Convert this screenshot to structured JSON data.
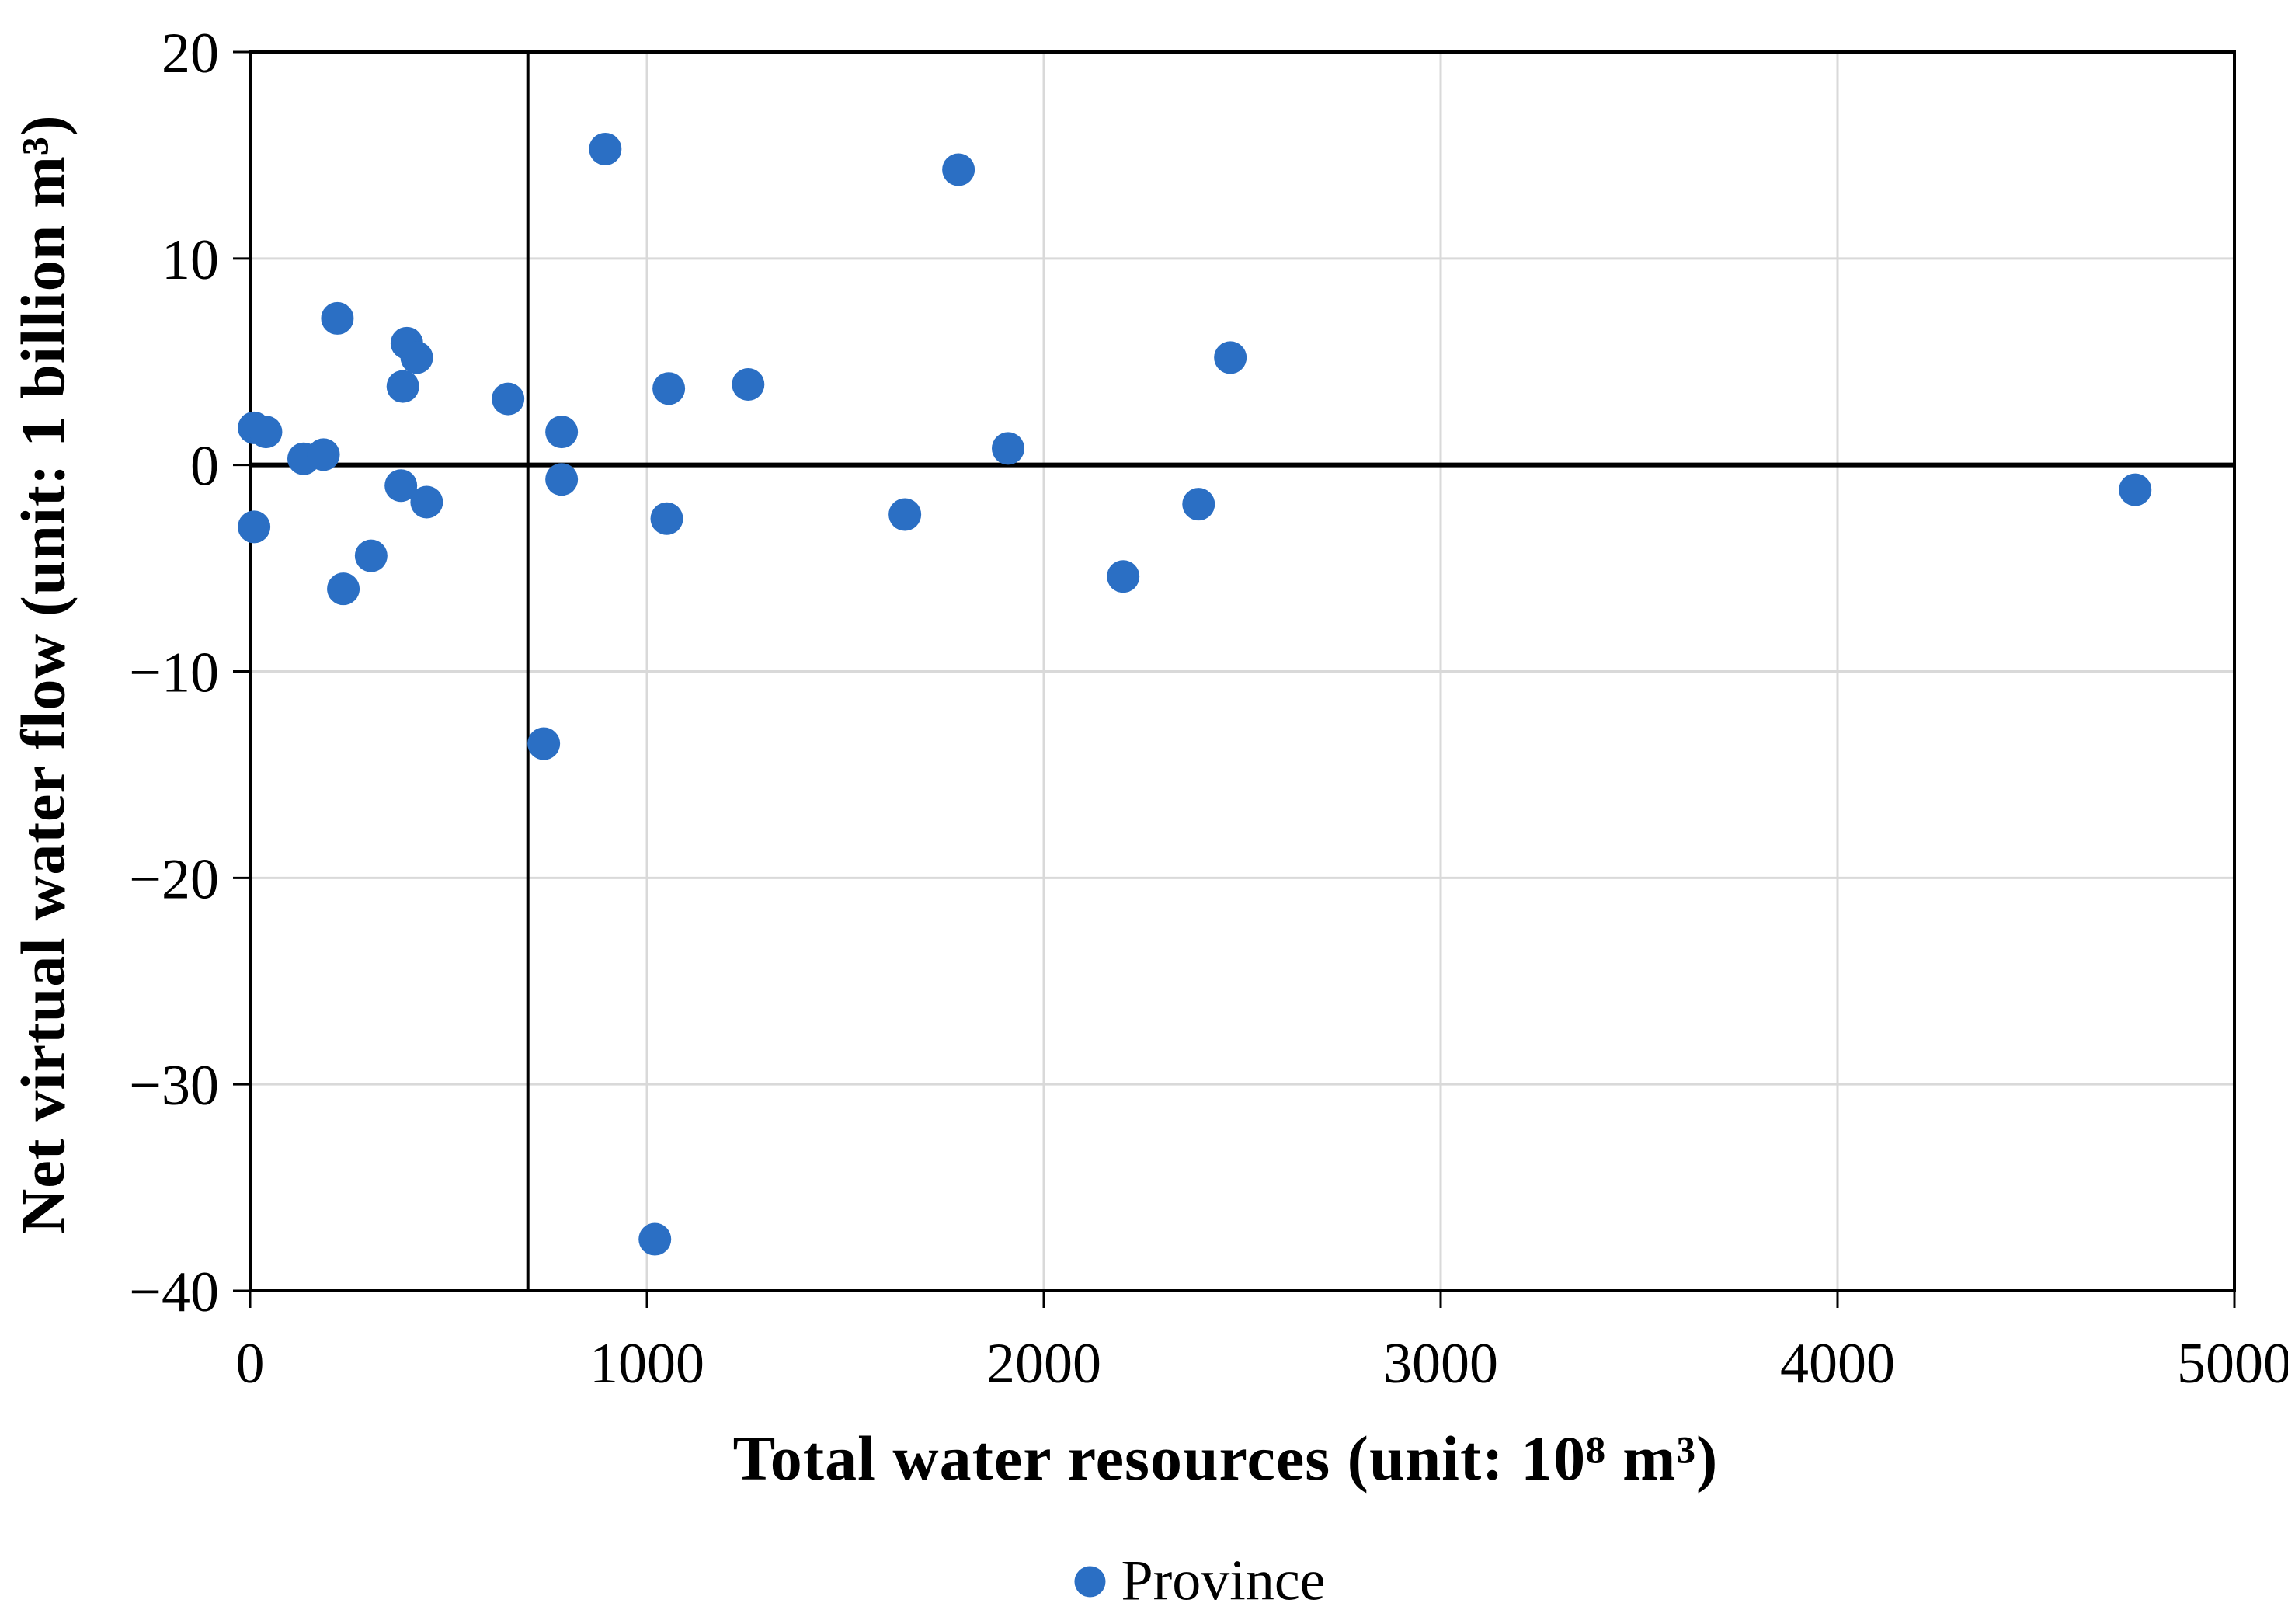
{
  "page": {
    "background": "#ffffff"
  },
  "chart_data": {
    "type": "scatter",
    "title": "",
    "xlabel": "Total water resources (unit: 10⁸ m³)",
    "ylabel": "Net virtual water flow (unit: 1 billion m³)",
    "xlim": [
      0,
      5000
    ],
    "ylim": [
      -40,
      20
    ],
    "x_ticks": [
      0,
      1000,
      2000,
      3000,
      4000,
      5000
    ],
    "y_ticks": [
      20,
      10,
      0,
      -10,
      -20,
      -30,
      -40
    ],
    "x_tick_labels": [
      "0",
      "1000",
      "2000",
      "3000",
      "4000",
      "5000"
    ],
    "y_tick_labels": [
      "20",
      "10",
      "0",
      "−10",
      "−20",
      "−30",
      "−40"
    ],
    "grid": true,
    "grid_color": "#d9d9d9",
    "axis_color": "#000000",
    "reference_line_x": 700,
    "reference_line_y": 0,
    "marker_color": "#2b6fc4",
    "legend": {
      "label": "Province",
      "position": "bottom-center"
    },
    "series": [
      {
        "name": "Province",
        "points": [
          [
            10,
            1.8
          ],
          [
            40,
            1.6
          ],
          [
            10,
            -3.0
          ],
          [
            135,
            0.3
          ],
          [
            185,
            0.5
          ],
          [
            220,
            7.1
          ],
          [
            235,
            -6.0
          ],
          [
            305,
            -4.4
          ],
          [
            380,
            -1.0
          ],
          [
            385,
            3.8
          ],
          [
            395,
            5.9
          ],
          [
            420,
            5.2
          ],
          [
            445,
            -1.8
          ],
          [
            650,
            3.2
          ],
          [
            740,
            -13.5
          ],
          [
            785,
            1.6
          ],
          [
            785,
            -0.7
          ],
          [
            895,
            15.3
          ],
          [
            1020,
            -37.5
          ],
          [
            1050,
            -2.6
          ],
          [
            1055,
            3.7
          ],
          [
            1255,
            3.9
          ],
          [
            1650,
            -2.4
          ],
          [
            1785,
            14.3
          ],
          [
            1910,
            0.8
          ],
          [
            2200,
            -5.4
          ],
          [
            2390,
            -1.9
          ],
          [
            2470,
            5.2
          ],
          [
            4750,
            -1.2
          ]
        ]
      }
    ]
  }
}
